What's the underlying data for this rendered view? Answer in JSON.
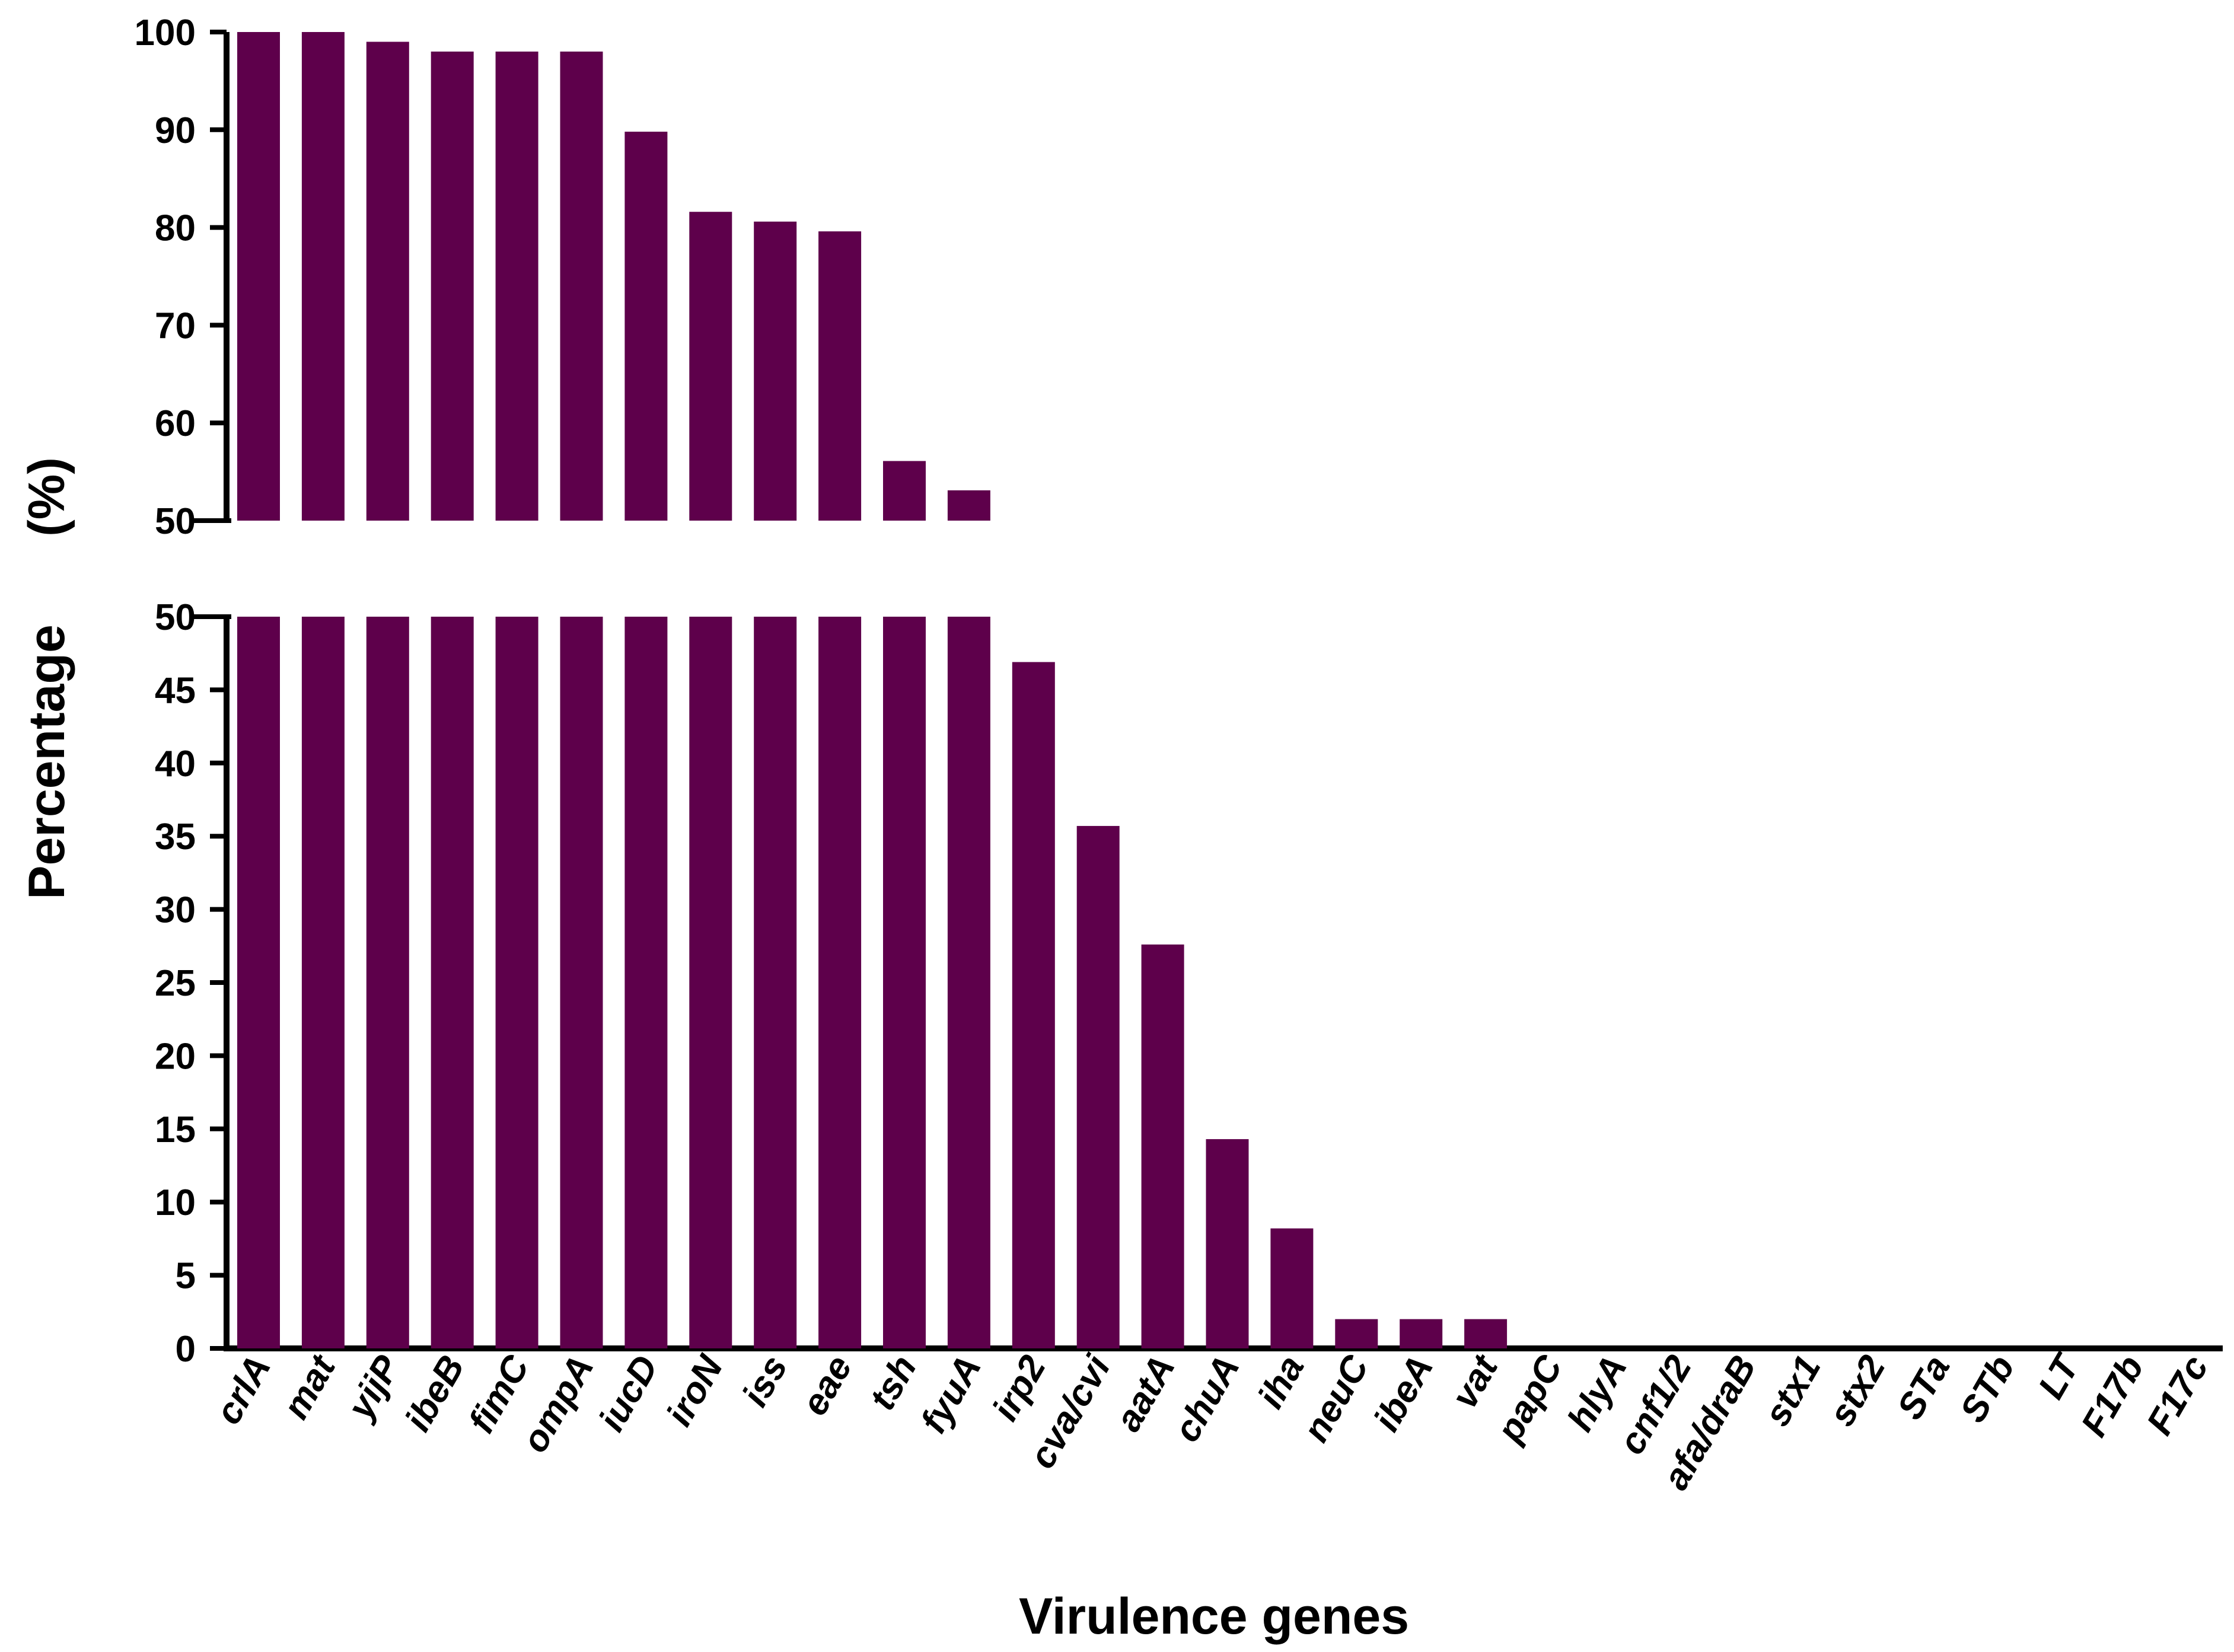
{
  "chart_data": {
    "type": "bar",
    "title": "",
    "xlabel": "Virulence genes",
    "ylabel": "Percentage",
    "ylabel_unit": "(%)",
    "bar_color": "#5E004B",
    "axis_break": true,
    "segments": {
      "lower": {
        "ylim": [
          0,
          50
        ],
        "ticks": [
          0,
          5,
          10,
          15,
          20,
          25,
          30,
          35,
          40,
          45,
          50
        ]
      },
      "upper": {
        "ylim": [
          50,
          100
        ],
        "ticks": [
          50,
          60,
          70,
          80,
          90,
          100
        ]
      }
    },
    "categories": [
      "crlA",
      "mat",
      "yijP",
      "ibeB",
      "fimC",
      "ompA",
      "iucD",
      "iroN",
      "iss",
      "eae",
      "tsh",
      "fyuA",
      "irp2",
      "cva/cvi",
      "aatA",
      "chuA",
      "iha",
      "neuC",
      "ibeA",
      "vat",
      "papC",
      "hlyA",
      "cnf1/2",
      "afa/draB",
      "stx1",
      "stx2",
      "STa",
      "STb",
      "LT",
      "F17b",
      "F17c"
    ],
    "values": [
      100,
      100,
      99,
      98,
      98,
      98,
      89.8,
      81.6,
      80.6,
      79.6,
      56.1,
      53.1,
      46.9,
      35.7,
      27.6,
      14.3,
      8.2,
      2,
      2,
      2,
      0,
      0,
      0,
      0,
      0,
      0,
      0,
      0,
      0,
      0,
      0
    ]
  }
}
